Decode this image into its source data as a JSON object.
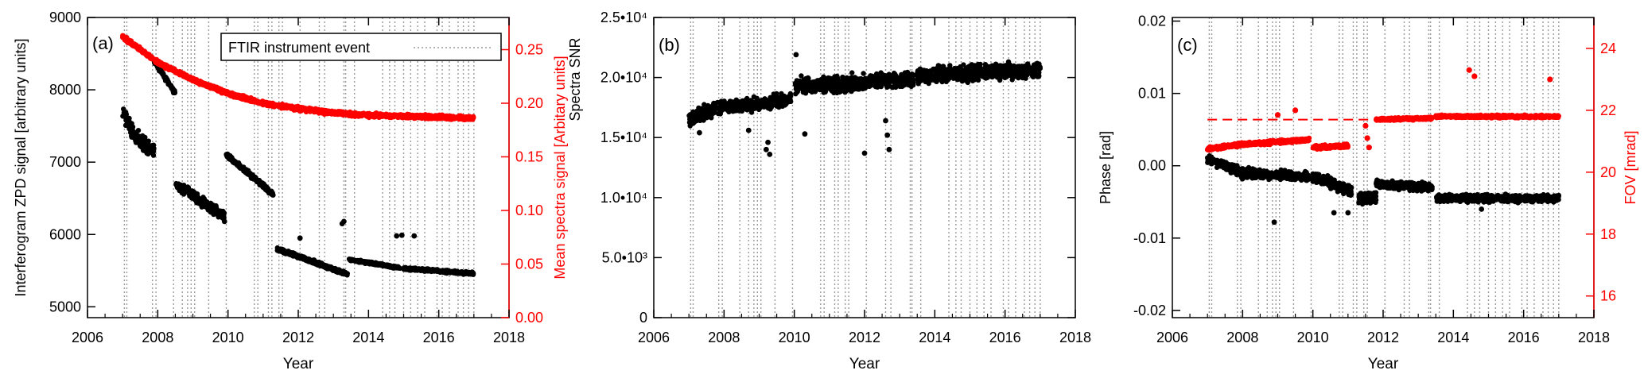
{
  "colors": {
    "black": "#000000",
    "red": "#ff0000",
    "event_line": "#9a9a9a"
  },
  "chart_data": [
    {
      "type": "scatter",
      "panel_label": "(a)",
      "xlabel": "Year",
      "xlim": [
        2006,
        2018
      ],
      "xticks": [
        "2006",
        "2008",
        "2010",
        "2012",
        "2014",
        "2016",
        "2018"
      ],
      "ylabel_left": "Interferogram ZPD signal [arbitrary units]",
      "ylim_left": [
        4850,
        9000
      ],
      "yticks_left": [
        "5000",
        "6000",
        "7000",
        "8000",
        "9000"
      ],
      "ylabel_right": "Mean spectra signal [Arbitary units]",
      "ylim_right": [
        0,
        0.28
      ],
      "yticks_right": [
        "0.00",
        "0.05",
        "0.10",
        "0.15",
        "0.20",
        "0.25"
      ],
      "legend": {
        "label": "FTIR instrument event",
        "placement": "top-right"
      },
      "series": [
        {
          "name": "",
          "color": "black",
          "axis": "left",
          "segments": [
            {
              "x": [
                2007.0,
                2007.3,
                2007.6,
                2007.9
              ],
              "y": [
                7700,
                7400,
                7250,
                7150
              ],
              "spread": 140
            },
            {
              "x": [
                2007.9,
                2008.5
              ],
              "y": [
                8400,
                7950
              ],
              "spread": 40
            },
            {
              "x": [
                2008.5,
                2009.9
              ],
              "y": [
                6700,
                6250
              ],
              "spread": 90
            },
            {
              "x": [
                2009.95,
                2011.3
              ],
              "y": [
                7100,
                6550
              ],
              "spread": 45
            },
            {
              "x": [
                2011.4,
                2013.4
              ],
              "y": [
                5800,
                5450
              ],
              "spread": 35
            },
            {
              "x": [
                2013.45,
                2014.9
              ],
              "y": [
                5650,
                5540
              ],
              "spread": 25
            },
            {
              "x": [
                2015.0,
                2017.0
              ],
              "y": [
                5530,
                5460
              ],
              "spread": 25
            }
          ]
        },
        {
          "name": "",
          "color": "red",
          "axis": "right",
          "segments": [
            {
              "x": [
                2007.0,
                2008.0,
                2009.0,
                2010.0,
                2011.0,
                2012.0,
                2013.0,
                2014.0,
                2015.0,
                2016.0,
                2017.0
              ],
              "y": [
                0.262,
                0.238,
                0.222,
                0.209,
                0.2,
                0.195,
                0.191,
                0.189,
                0.188,
                0.187,
                0.186
              ],
              "spread": 0.0025
            }
          ]
        }
      ],
      "outliers": [
        {
          "x": 2013.25,
          "y": 6150
        },
        {
          "x": 2013.3,
          "y": 6180
        },
        {
          "x": 2014.8,
          "y": 5980
        },
        {
          "x": 2014.95,
          "y": 5990
        },
        {
          "x": 2015.3,
          "y": 5980
        },
        {
          "x": 2012.05,
          "y": 5950
        },
        {
          "x": 2009.9,
          "y": 6180
        }
      ]
    },
    {
      "type": "scatter",
      "panel_label": "(b)",
      "xlabel": "Year",
      "xlim": [
        2006,
        2018
      ],
      "xticks": [
        "2006",
        "2008",
        "2010",
        "2012",
        "2014",
        "2016",
        "2018"
      ],
      "ylabel_left": "Spectra SNR",
      "ylim_left": [
        0,
        25000
      ],
      "yticks_left": [
        "0",
        "5.0•10³",
        "1.0•10⁴",
        "1.5•10⁴",
        "2.0•10⁴",
        "2.5•10⁴"
      ],
      "series": [
        {
          "name": "",
          "color": "black",
          "axis": "left",
          "segments": [
            {
              "x": [
                2007.0,
                2008.0,
                2009.0,
                2009.9
              ],
              "y": [
                16500,
                17600,
                17800,
                18200
              ],
              "spread": 800
            },
            {
              "x": [
                2010.0,
                2011.5,
                2013.4
              ],
              "y": [
                19300,
                19500,
                19900
              ],
              "spread": 900
            },
            {
              "x": [
                2013.5,
                2015.0,
                2017.0
              ],
              "y": [
                20100,
                20400,
                20600
              ],
              "spread": 900
            }
          ]
        }
      ],
      "outliers": [
        {
          "x": 2009.2,
          "y": 14000
        },
        {
          "x": 2009.25,
          "y": 14600
        },
        {
          "x": 2009.3,
          "y": 13600
        },
        {
          "x": 2008.7,
          "y": 15600
        },
        {
          "x": 2007.3,
          "y": 15400
        },
        {
          "x": 2012.6,
          "y": 16400
        },
        {
          "x": 2012.65,
          "y": 15200
        },
        {
          "x": 2012.7,
          "y": 14000
        },
        {
          "x": 2012.0,
          "y": 13700
        },
        {
          "x": 2010.3,
          "y": 15300
        },
        {
          "x": 2010.05,
          "y": 21900
        }
      ]
    },
    {
      "type": "scatter",
      "panel_label": "(c)",
      "xlabel": "Year",
      "xlim": [
        2006,
        2018
      ],
      "xticks": [
        "2006",
        "2008",
        "2010",
        "2012",
        "2014",
        "2016",
        "2018"
      ],
      "ylabel_left": "Phase [rad]",
      "ylim_left": [
        -0.021,
        0.0205
      ],
      "yticks_left": [
        "-0.02",
        "-0.01",
        "0.00",
        "0.01",
        "0.02"
      ],
      "ylabel_right": "FOV [mrad]",
      "ylim_right": [
        15.3,
        25
      ],
      "yticks_right": [
        "16",
        "18",
        "20",
        "22",
        "24"
      ],
      "reference_line_right": {
        "y": 21.7,
        "xlim": [
          2007.0,
          2011.8
        ],
        "color": "red",
        "style": "dashed"
      },
      "series": [
        {
          "name": "",
          "color": "black",
          "axis": "left",
          "segments": [
            {
              "x": [
                2007.0,
                2008.0,
                2009.9
              ],
              "y": [
                0.001,
                -0.001,
                -0.0015
              ],
              "spread": 0.0009
            },
            {
              "x": [
                2010.0,
                2011.1
              ],
              "y": [
                -0.0015,
                -0.0035
              ],
              "spread": 0.001
            },
            {
              "x": [
                2011.3,
                2011.8
              ],
              "y": [
                -0.0045,
                -0.0045
              ],
              "spread": 0.0012
            },
            {
              "x": [
                2011.8,
                2013.4
              ],
              "y": [
                -0.0025,
                -0.003
              ],
              "spread": 0.0008
            },
            {
              "x": [
                2013.5,
                2017.0
              ],
              "y": [
                -0.0045,
                -0.0045
              ],
              "spread": 0.0007
            }
          ]
        },
        {
          "name": "",
          "color": "red",
          "axis": "right",
          "segments": [
            {
              "x": [
                2007.0,
                2008.0,
                2009.9
              ],
              "y": [
                20.75,
                20.9,
                21.05
              ],
              "spread": 0.08
            },
            {
              "x": [
                2010.0,
                2011.0
              ],
              "y": [
                20.8,
                20.85
              ],
              "spread": 0.08
            },
            {
              "x": [
                2011.8,
                2013.4
              ],
              "y": [
                21.7,
                21.75
              ],
              "spread": 0.06
            },
            {
              "x": [
                2013.5,
                2017.0
              ],
              "y": [
                21.8,
                21.8
              ],
              "spread": 0.06
            }
          ]
        }
      ],
      "outliers_left": [
        {
          "x": 2008.9,
          "y": -0.0078
        },
        {
          "x": 2010.6,
          "y": -0.0065
        },
        {
          "x": 2011.0,
          "y": -0.0065
        },
        {
          "x": 2014.8,
          "y": -0.006
        }
      ],
      "outliers_right": [
        {
          "x": 2014.45,
          "y": 23.3
        },
        {
          "x": 2014.6,
          "y": 23.1
        },
        {
          "x": 2016.75,
          "y": 23.0
        },
        {
          "x": 2009.5,
          "y": 22.0
        },
        {
          "x": 2011.5,
          "y": 21.5
        },
        {
          "x": 2011.55,
          "y": 21.1
        },
        {
          "x": 2011.6,
          "y": 20.8
        },
        {
          "x": 2009.0,
          "y": 21.85
        }
      ]
    }
  ],
  "instrument_events": [
    2007.05,
    2007.12,
    2007.85,
    2007.95,
    2008.45,
    2008.7,
    2008.85,
    2008.95,
    2009.05,
    2009.45,
    2009.95,
    2010.75,
    2010.85,
    2011.15,
    2011.25,
    2011.45,
    2011.55,
    2012.05,
    2012.6,
    2012.75,
    2013.3,
    2013.35,
    2013.6,
    2014.4,
    2014.6,
    2014.75,
    2015.0,
    2015.2,
    2015.4,
    2015.6,
    2015.95,
    2016.1,
    2016.3,
    2016.55,
    2016.7,
    2016.85,
    2017.0
  ]
}
